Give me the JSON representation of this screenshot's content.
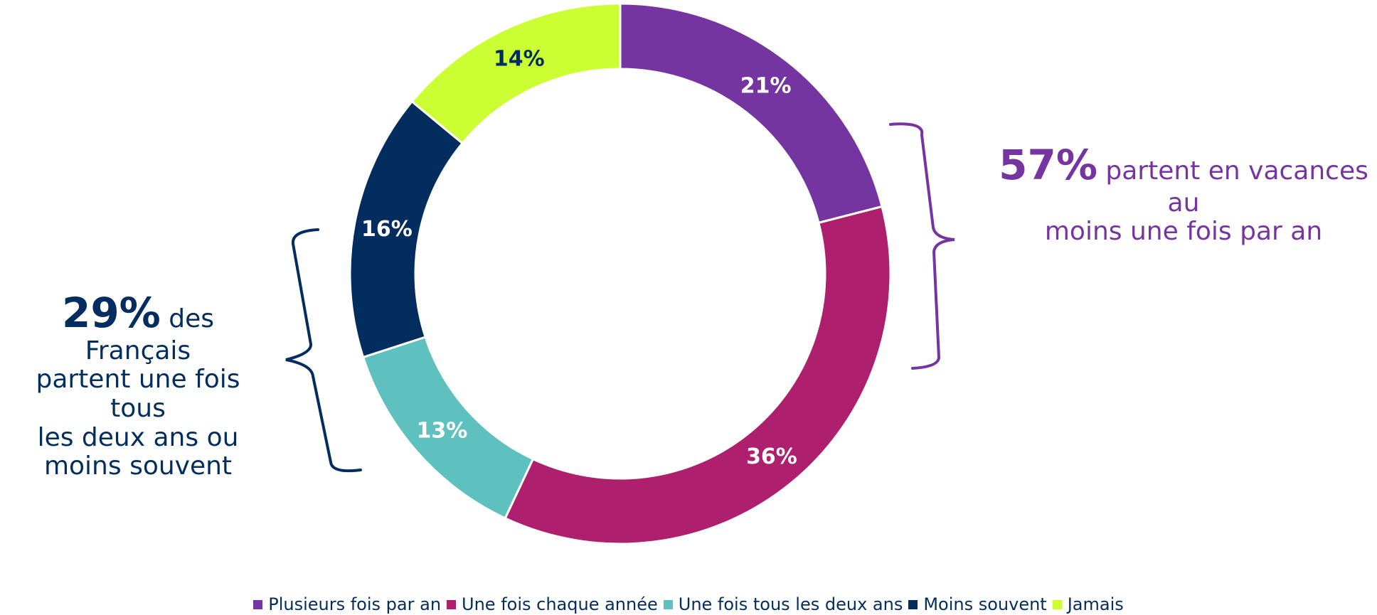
{
  "chart_data": {
    "type": "pie",
    "variant": "donut",
    "categories": [
      "Plusieurs fois par an",
      "Une fois chaque année",
      "Une fois tous les deux ans",
      "Moins souvent",
      "Jamais"
    ],
    "values": [
      21,
      36,
      13,
      16,
      14
    ],
    "labels": [
      "21%",
      "36%",
      "13%",
      "16%",
      "14%"
    ],
    "colors": [
      "#7535a0",
      "#ae1f6e",
      "#5fc0c0",
      "#032d5f",
      "#ccff33"
    ],
    "label_colors": [
      "#ffffff",
      "#ffffff",
      "#ffffff",
      "#ffffff",
      "#032d5f"
    ],
    "start": "12 o'clock",
    "direction": "clockwise",
    "legend_position": "bottom"
  },
  "annotations": {
    "right": {
      "value": "57%",
      "text_line1": "partent en vacances au",
      "text_line2": "moins une fois par an",
      "color": "#7535a0"
    },
    "left": {
      "value": "29%",
      "text_line1": "des Français",
      "text_line2": "partent une fois tous",
      "text_line3": "les deux ans ou",
      "text_line4": "moins souvent",
      "color": "#032d5f"
    }
  }
}
